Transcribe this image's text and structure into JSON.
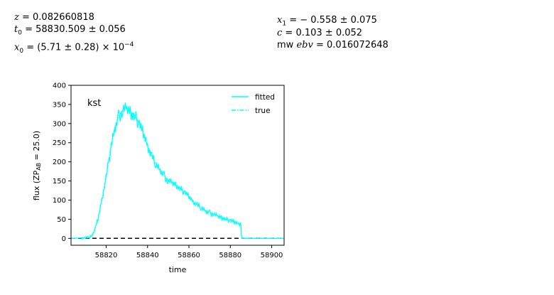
{
  "params": {
    "z": {
      "symbol": "z",
      "text": "= 0.082660818"
    },
    "t0": {
      "symbol": "t",
      "sub": "0",
      "text": "= 58830.509 ± 0.056"
    },
    "x0": {
      "symbol": "x",
      "sub": "0",
      "text": "= (5.71 ± 0.28) × 10",
      "exp": "−4"
    },
    "x1": {
      "symbol": "x",
      "sub": "1",
      "text": "= − 0.558 ± 0.075"
    },
    "c": {
      "symbol": "c",
      "text": "= 0.103 ± 0.052"
    },
    "mwebv": {
      "prefix": "mw",
      "symbol": "ebv",
      "text": "= 0.016072648"
    }
  },
  "chart_data": {
    "type": "line",
    "band_label": "kst",
    "xlabel": "time",
    "ylabel": "flux (ZP",
    "ylabel_sub": "AB",
    "ylabel_rest": " = 25.0)",
    "xlim": [
      58803,
      58906
    ],
    "ylim": [
      -18,
      400
    ],
    "xticks": [
      58820,
      58840,
      58860,
      58880,
      58900
    ],
    "yticks": [
      0,
      50,
      100,
      150,
      200,
      250,
      300,
      350,
      400
    ],
    "legend": {
      "position": "top-right",
      "entries": [
        "fitted",
        "true"
      ]
    },
    "series": [
      {
        "name": "fitted",
        "style": "solid",
        "color": "#00ffff",
        "x": [
          58803,
          58812,
          58814,
          58816,
          58818,
          58820,
          58822,
          58824,
          58826,
          58828,
          58830,
          58832,
          58834,
          58836,
          58838,
          58840,
          58842,
          58844,
          58846,
          58848,
          58850,
          58852,
          58854,
          58856,
          58858,
          58860,
          58862,
          58864,
          58866,
          58868,
          58870,
          58872,
          58874,
          58876,
          58878,
          58880,
          58882,
          58884,
          58885,
          58885.5,
          58896,
          58906
        ],
        "y": [
          0,
          2,
          15,
          50,
          105,
          160,
          230,
          285,
          320,
          335,
          340,
          330,
          320,
          300,
          275,
          245,
          215,
          195,
          180,
          165,
          150,
          145,
          140,
          130,
          120,
          110,
          98,
          88,
          80,
          72,
          68,
          63,
          58,
          55,
          50,
          47,
          43,
          40,
          38,
          0,
          0,
          0
        ]
      },
      {
        "name": "true",
        "style": "dashed",
        "color": "#00ffff",
        "x": [
          58803,
          58812,
          58814,
          58816,
          58818,
          58820,
          58822,
          58824,
          58826,
          58828,
          58830,
          58832,
          58834,
          58836,
          58838,
          58840,
          58842,
          58844,
          58846,
          58848,
          58850,
          58852,
          58854,
          58856,
          58858,
          58860,
          58862,
          58864,
          58866,
          58868,
          58870,
          58872,
          58874,
          58876,
          58878,
          58880,
          58882,
          58884,
          58885,
          58885.5,
          58896,
          58906
        ],
        "y": [
          0,
          2,
          15,
          50,
          105,
          160,
          230,
          285,
          320,
          335,
          340,
          330,
          320,
          300,
          275,
          245,
          215,
          195,
          180,
          165,
          150,
          145,
          140,
          130,
          120,
          110,
          98,
          88,
          80,
          72,
          68,
          63,
          58,
          55,
          50,
          47,
          43,
          40,
          38,
          0,
          0,
          0
        ]
      }
    ],
    "zero_line": {
      "y": 0,
      "style": "dashed",
      "color": "#000000"
    }
  }
}
